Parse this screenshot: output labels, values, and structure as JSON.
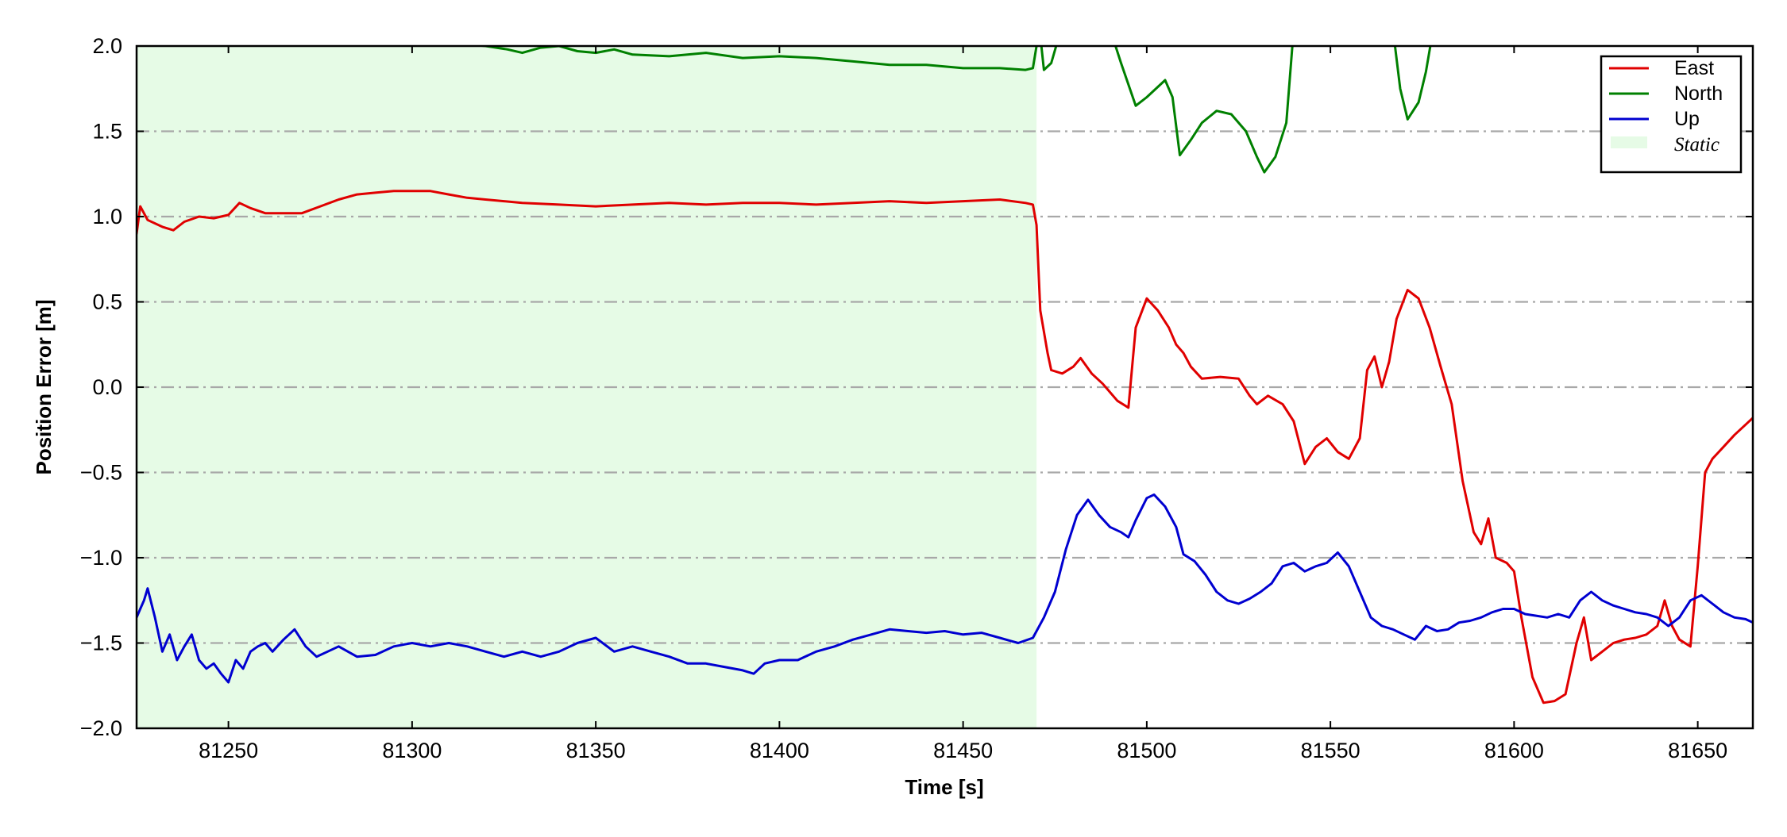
{
  "chart_data": {
    "type": "line",
    "title": "",
    "xlabel": "Time [s]",
    "ylabel": "Position Error [m]",
    "xlim": [
      81225,
      81665
    ],
    "ylim": [
      -2.0,
      2.0
    ],
    "x_ticks": [
      81250,
      81300,
      81350,
      81400,
      81450,
      81500,
      81550,
      81600,
      81650
    ],
    "x_tick_labels": [
      "81250",
      "81300",
      "81350",
      "81400",
      "81450",
      "81500",
      "81550",
      "81600",
      "81650"
    ],
    "y_ticks": [
      2.0,
      1.5,
      1.0,
      0.5,
      0.0,
      -0.5,
      -1.0,
      -1.5,
      -2.0
    ],
    "y_tick_labels": [
      "2.0",
      "1.5",
      "1.0",
      "0.5",
      "0.0",
      "−0.5",
      "−1.0",
      "−1.5",
      "−2.0"
    ],
    "grid": "horizontal dash-dot at y ticks",
    "legend_position": "top-right",
    "static_region": {
      "label": "Static",
      "x_start": 81225,
      "x_end": 81470,
      "color": "#e6fbe6"
    },
    "series": [
      {
        "name": "East",
        "color": "#e00000",
        "points": [
          [
            81225,
            0.9
          ],
          [
            81226,
            1.06
          ],
          [
            81228,
            0.98
          ],
          [
            81232,
            0.94
          ],
          [
            81235,
            0.92
          ],
          [
            81238,
            0.97
          ],
          [
            81242,
            1.0
          ],
          [
            81246,
            0.99
          ],
          [
            81250,
            1.01
          ],
          [
            81253,
            1.08
          ],
          [
            81256,
            1.05
          ],
          [
            81260,
            1.02
          ],
          [
            81265,
            1.02
          ],
          [
            81270,
            1.02
          ],
          [
            81275,
            1.06
          ],
          [
            81280,
            1.1
          ],
          [
            81285,
            1.13
          ],
          [
            81290,
            1.14
          ],
          [
            81295,
            1.15
          ],
          [
            81300,
            1.15
          ],
          [
            81305,
            1.15
          ],
          [
            81310,
            1.13
          ],
          [
            81315,
            1.11
          ],
          [
            81320,
            1.1
          ],
          [
            81325,
            1.09
          ],
          [
            81330,
            1.08
          ],
          [
            81340,
            1.07
          ],
          [
            81350,
            1.06
          ],
          [
            81360,
            1.07
          ],
          [
            81370,
            1.08
          ],
          [
            81380,
            1.07
          ],
          [
            81390,
            1.08
          ],
          [
            81400,
            1.08
          ],
          [
            81410,
            1.07
          ],
          [
            81420,
            1.08
          ],
          [
            81430,
            1.09
          ],
          [
            81440,
            1.08
          ],
          [
            81450,
            1.09
          ],
          [
            81460,
            1.1
          ],
          [
            81467,
            1.08
          ],
          [
            81469,
            1.07
          ],
          [
            81470,
            0.95
          ],
          [
            81471,
            0.45
          ],
          [
            81473,
            0.2
          ],
          [
            81474,
            0.1
          ],
          [
            81477,
            0.08
          ],
          [
            81480,
            0.12
          ],
          [
            81482,
            0.17
          ],
          [
            81485,
            0.08
          ],
          [
            81488,
            0.02
          ],
          [
            81492,
            -0.08
          ],
          [
            81495,
            -0.12
          ],
          [
            81497,
            0.35
          ],
          [
            81500,
            0.52
          ],
          [
            81503,
            0.45
          ],
          [
            81506,
            0.35
          ],
          [
            81508,
            0.25
          ],
          [
            81510,
            0.2
          ],
          [
            81512,
            0.12
          ],
          [
            81515,
            0.05
          ],
          [
            81520,
            0.06
          ],
          [
            81525,
            0.05
          ],
          [
            81528,
            -0.05
          ],
          [
            81530,
            -0.1
          ],
          [
            81533,
            -0.05
          ],
          [
            81537,
            -0.1
          ],
          [
            81540,
            -0.2
          ],
          [
            81543,
            -0.45
          ],
          [
            81546,
            -0.35
          ],
          [
            81549,
            -0.3
          ],
          [
            81552,
            -0.38
          ],
          [
            81555,
            -0.42
          ],
          [
            81558,
            -0.3
          ],
          [
            81560,
            0.1
          ],
          [
            81562,
            0.18
          ],
          [
            81564,
            0.0
          ],
          [
            81566,
            0.15
          ],
          [
            81568,
            0.4
          ],
          [
            81571,
            0.57
          ],
          [
            81574,
            0.52
          ],
          [
            81577,
            0.35
          ],
          [
            81580,
            0.12
          ],
          [
            81583,
            -0.1
          ],
          [
            81586,
            -0.55
          ],
          [
            81589,
            -0.85
          ],
          [
            81591,
            -0.92
          ],
          [
            81593,
            -0.77
          ],
          [
            81595,
            -1.0
          ],
          [
            81598,
            -1.03
          ],
          [
            81600,
            -1.08
          ],
          [
            81602,
            -1.35
          ],
          [
            81605,
            -1.7
          ],
          [
            81608,
            -1.85
          ],
          [
            81611,
            -1.84
          ],
          [
            81614,
            -1.8
          ],
          [
            81617,
            -1.5
          ],
          [
            81619,
            -1.35
          ],
          [
            81621,
            -1.6
          ],
          [
            81624,
            -1.55
          ],
          [
            81627,
            -1.5
          ],
          [
            81630,
            -1.48
          ],
          [
            81633,
            -1.47
          ],
          [
            81636,
            -1.45
          ],
          [
            81639,
            -1.4
          ],
          [
            81641,
            -1.25
          ],
          [
            81643,
            -1.4
          ],
          [
            81645,
            -1.48
          ],
          [
            81648,
            -1.52
          ],
          [
            81650,
            -1.05
          ],
          [
            81652,
            -0.5
          ],
          [
            81654,
            -0.42
          ],
          [
            81657,
            -0.35
          ],
          [
            81660,
            -0.28
          ],
          [
            81663,
            -0.22
          ],
          [
            81665,
            -0.18
          ]
        ]
      },
      {
        "name": "North",
        "color": "#008000",
        "points": [
          [
            81225,
            2.2
          ],
          [
            81300,
            2.1
          ],
          [
            81310,
            2.02
          ],
          [
            81320,
            2.0
          ],
          [
            81326,
            1.98
          ],
          [
            81330,
            1.96
          ],
          [
            81335,
            1.99
          ],
          [
            81340,
            2.0
          ],
          [
            81345,
            1.97
          ],
          [
            81350,
            1.96
          ],
          [
            81355,
            1.98
          ],
          [
            81360,
            1.95
          ],
          [
            81370,
            1.94
          ],
          [
            81380,
            1.96
          ],
          [
            81390,
            1.93
          ],
          [
            81400,
            1.94
          ],
          [
            81410,
            1.93
          ],
          [
            81420,
            1.91
          ],
          [
            81430,
            1.89
          ],
          [
            81440,
            1.89
          ],
          [
            81450,
            1.87
          ],
          [
            81460,
            1.87
          ],
          [
            81467,
            1.86
          ],
          [
            81469,
            1.87
          ],
          [
            81470,
            2.0
          ],
          [
            81471,
            2.06
          ],
          [
            81472,
            1.86
          ],
          [
            81474,
            1.9
          ],
          [
            81476,
            2.05
          ],
          [
            81490,
            2.1
          ],
          [
            81493,
            1.9
          ],
          [
            81497,
            1.65
          ],
          [
            81500,
            1.7
          ],
          [
            81505,
            1.8
          ],
          [
            81507,
            1.7
          ],
          [
            81509,
            1.36
          ],
          [
            81512,
            1.45
          ],
          [
            81515,
            1.55
          ],
          [
            81519,
            1.62
          ],
          [
            81523,
            1.6
          ],
          [
            81527,
            1.5
          ],
          [
            81530,
            1.35
          ],
          [
            81532,
            1.26
          ],
          [
            81535,
            1.35
          ],
          [
            81538,
            1.55
          ],
          [
            81540,
            2.1
          ],
          [
            81567,
            2.1
          ],
          [
            81569,
            1.75
          ],
          [
            81571,
            1.57
          ],
          [
            81574,
            1.67
          ],
          [
            81576,
            1.85
          ],
          [
            81578,
            2.1
          ],
          [
            81585,
            2.2
          ]
        ]
      },
      {
        "name": "Up",
        "color": "#0000d0",
        "points": [
          [
            81225,
            -1.35
          ],
          [
            81226,
            -1.3
          ],
          [
            81227,
            -1.25
          ],
          [
            81228,
            -1.18
          ],
          [
            81230,
            -1.35
          ],
          [
            81232,
            -1.55
          ],
          [
            81234,
            -1.45
          ],
          [
            81236,
            -1.6
          ],
          [
            81238,
            -1.52
          ],
          [
            81240,
            -1.45
          ],
          [
            81242,
            -1.6
          ],
          [
            81244,
            -1.65
          ],
          [
            81246,
            -1.62
          ],
          [
            81248,
            -1.68
          ],
          [
            81250,
            -1.73
          ],
          [
            81252,
            -1.6
          ],
          [
            81254,
            -1.65
          ],
          [
            81256,
            -1.55
          ],
          [
            81258,
            -1.52
          ],
          [
            81260,
            -1.5
          ],
          [
            81262,
            -1.55
          ],
          [
            81265,
            -1.48
          ],
          [
            81268,
            -1.42
          ],
          [
            81271,
            -1.52
          ],
          [
            81274,
            -1.58
          ],
          [
            81277,
            -1.55
          ],
          [
            81280,
            -1.52
          ],
          [
            81285,
            -1.58
          ],
          [
            81290,
            -1.57
          ],
          [
            81295,
            -1.52
          ],
          [
            81300,
            -1.5
          ],
          [
            81305,
            -1.52
          ],
          [
            81310,
            -1.5
          ],
          [
            81315,
            -1.52
          ],
          [
            81320,
            -1.55
          ],
          [
            81325,
            -1.58
          ],
          [
            81330,
            -1.55
          ],
          [
            81335,
            -1.58
          ],
          [
            81340,
            -1.55
          ],
          [
            81345,
            -1.5
          ],
          [
            81350,
            -1.47
          ],
          [
            81355,
            -1.55
          ],
          [
            81360,
            -1.52
          ],
          [
            81365,
            -1.55
          ],
          [
            81370,
            -1.58
          ],
          [
            81375,
            -1.62
          ],
          [
            81380,
            -1.62
          ],
          [
            81385,
            -1.64
          ],
          [
            81390,
            -1.66
          ],
          [
            81393,
            -1.68
          ],
          [
            81396,
            -1.62
          ],
          [
            81400,
            -1.6
          ],
          [
            81405,
            -1.6
          ],
          [
            81410,
            -1.55
          ],
          [
            81415,
            -1.52
          ],
          [
            81420,
            -1.48
          ],
          [
            81425,
            -1.45
          ],
          [
            81430,
            -1.42
          ],
          [
            81435,
            -1.43
          ],
          [
            81440,
            -1.44
          ],
          [
            81445,
            -1.43
          ],
          [
            81450,
            -1.45
          ],
          [
            81455,
            -1.44
          ],
          [
            81460,
            -1.47
          ],
          [
            81465,
            -1.5
          ],
          [
            81469,
            -1.47
          ],
          [
            81472,
            -1.35
          ],
          [
            81475,
            -1.2
          ],
          [
            81478,
            -0.95
          ],
          [
            81481,
            -0.75
          ],
          [
            81484,
            -0.66
          ],
          [
            81487,
            -0.75
          ],
          [
            81490,
            -0.82
          ],
          [
            81493,
            -0.85
          ],
          [
            81495,
            -0.88
          ],
          [
            81497,
            -0.78
          ],
          [
            81500,
            -0.65
          ],
          [
            81502,
            -0.63
          ],
          [
            81505,
            -0.7
          ],
          [
            81508,
            -0.82
          ],
          [
            81510,
            -0.98
          ],
          [
            81513,
            -1.02
          ],
          [
            81516,
            -1.1
          ],
          [
            81519,
            -1.2
          ],
          [
            81522,
            -1.25
          ],
          [
            81525,
            -1.27
          ],
          [
            81528,
            -1.24
          ],
          [
            81531,
            -1.2
          ],
          [
            81534,
            -1.15
          ],
          [
            81537,
            -1.05
          ],
          [
            81540,
            -1.03
          ],
          [
            81543,
            -1.08
          ],
          [
            81546,
            -1.05
          ],
          [
            81549,
            -1.03
          ],
          [
            81552,
            -0.97
          ],
          [
            81555,
            -1.05
          ],
          [
            81558,
            -1.2
          ],
          [
            81561,
            -1.35
          ],
          [
            81564,
            -1.4
          ],
          [
            81567,
            -1.42
          ],
          [
            81570,
            -1.45
          ],
          [
            81573,
            -1.48
          ],
          [
            81576,
            -1.4
          ],
          [
            81579,
            -1.43
          ],
          [
            81582,
            -1.42
          ],
          [
            81585,
            -1.38
          ],
          [
            81588,
            -1.37
          ],
          [
            81591,
            -1.35
          ],
          [
            81594,
            -1.32
          ],
          [
            81597,
            -1.3
          ],
          [
            81600,
            -1.3
          ],
          [
            81603,
            -1.33
          ],
          [
            81606,
            -1.34
          ],
          [
            81609,
            -1.35
          ],
          [
            81612,
            -1.33
          ],
          [
            81615,
            -1.35
          ],
          [
            81618,
            -1.25
          ],
          [
            81621,
            -1.2
          ],
          [
            81624,
            -1.25
          ],
          [
            81627,
            -1.28
          ],
          [
            81630,
            -1.3
          ],
          [
            81633,
            -1.32
          ],
          [
            81636,
            -1.33
          ],
          [
            81639,
            -1.35
          ],
          [
            81642,
            -1.4
          ],
          [
            81645,
            -1.35
          ],
          [
            81648,
            -1.25
          ],
          [
            81651,
            -1.22
          ],
          [
            81654,
            -1.27
          ],
          [
            81657,
            -1.32
          ],
          [
            81660,
            -1.35
          ],
          [
            81663,
            -1.36
          ],
          [
            81665,
            -1.38
          ]
        ]
      }
    ]
  }
}
